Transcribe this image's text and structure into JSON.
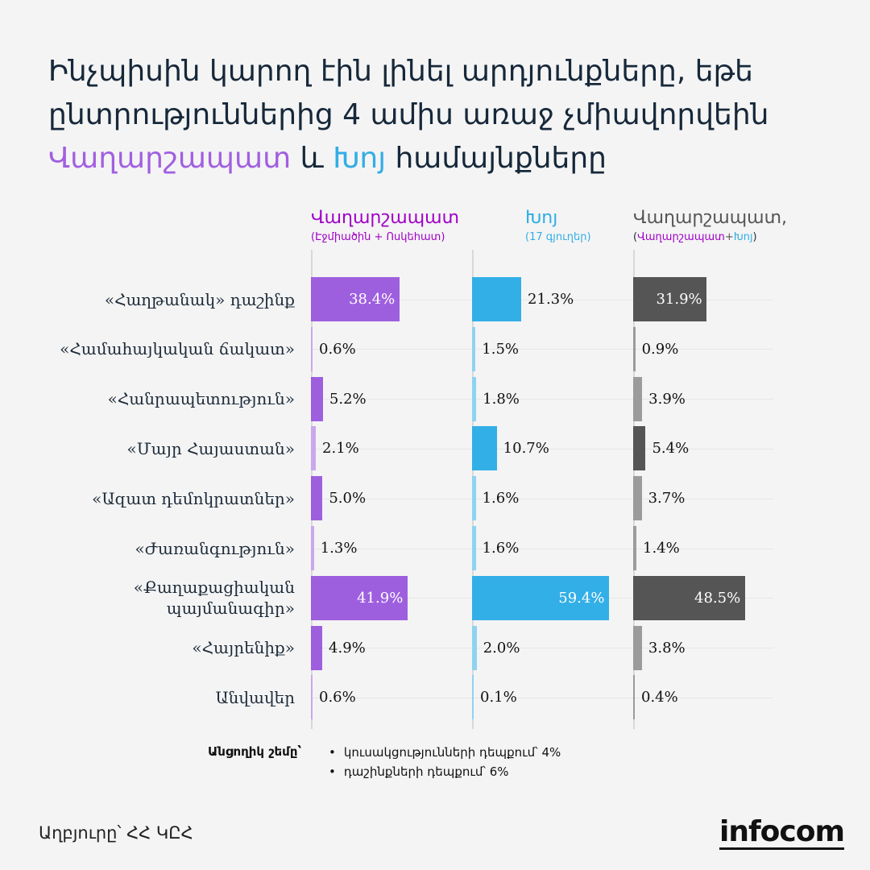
{
  "title": {
    "line1": "Ինչպիսին կարող էին լինել արդյունքները, եթե",
    "line2": "ընտրություններից 4 ամիս առաջ չմիավորվեին",
    "part_a": "Վաղարշապատ",
    "part_and": " և ",
    "part_b": "Խոյ",
    "part_end": " համայնքները"
  },
  "columns": [
    {
      "title": "Վաղարշապատ",
      "subtitle": "(Էջմիածին + Ոսկեհատ)",
      "color": "#a000c8"
    },
    {
      "title": "Խոյ",
      "subtitle": "(17 գյուղեր)",
      "color": "#32aee6"
    },
    {
      "title": "Վաղարշապատ,",
      "subtitle_a": "Վաղարշապատ",
      "subtitle_plus": "+",
      "subtitle_b": "Խոյ",
      "color": "#555555"
    }
  ],
  "colors": {
    "purple_main": "#9e5fdf",
    "purple_light": "#c9a8ec",
    "blue_main": "#33afe7",
    "blue_light": "#8fd2f2",
    "gray_main": "#555555",
    "gray_light": "#9b9b9b"
  },
  "chart_data": {
    "type": "bar",
    "orientation": "horizontal",
    "categories": [
      "«Հաղթանակ» դաշինք",
      "«Համահայկական ճակատ»",
      "«Հանրապետություն»",
      "«Մայր Հայաստան»",
      "«Ազատ դեմոկրատներ»",
      "«Ժառանգություն»",
      "«Քաղաքացիական պայմանագիր»",
      "«Հայրենիք»",
      "Անվավեր"
    ],
    "series": [
      {
        "name": "Վաղարշապատ",
        "values": [
          38.4,
          0.6,
          5.2,
          2.1,
          5.0,
          1.3,
          41.9,
          4.9,
          0.6
        ]
      },
      {
        "name": "Խոյ",
        "values": [
          21.3,
          1.5,
          1.8,
          10.7,
          1.6,
          1.6,
          59.4,
          2.0,
          0.1
        ]
      },
      {
        "name": "Վաղարշապատ,",
        "values": [
          31.9,
          0.9,
          3.9,
          5.4,
          3.7,
          1.4,
          48.5,
          3.8,
          0.4
        ]
      }
    ],
    "value_labels": [
      [
        "38.4%",
        "0.6%",
        "5.2%",
        "2.1%",
        "5.0%",
        "1.3%",
        "41.9%",
        "4.9%",
        "0.6%"
      ],
      [
        "21.3%",
        "1.5%",
        "1.8%",
        "10.7%",
        "1.6%",
        "1.6%",
        "59.4%",
        "2.0%",
        "0.1%"
      ],
      [
        "31.9%",
        "0.9%",
        "3.9%",
        "5.4%",
        "3.7%",
        "1.4%",
        "48.5%",
        "3.8%",
        "0.4%"
      ]
    ],
    "xlim": [
      0,
      60
    ],
    "grid": true
  },
  "threshold": {
    "label": "Անցողիկ շեմը՝",
    "items": [
      "կուսակցությունների դեպքում՝ 4%",
      "դաշինքների դեպքում՝ 6%"
    ]
  },
  "source": "Աղբյուրը՝ ՀՀ ԿԸՀ",
  "logo": "infocom"
}
